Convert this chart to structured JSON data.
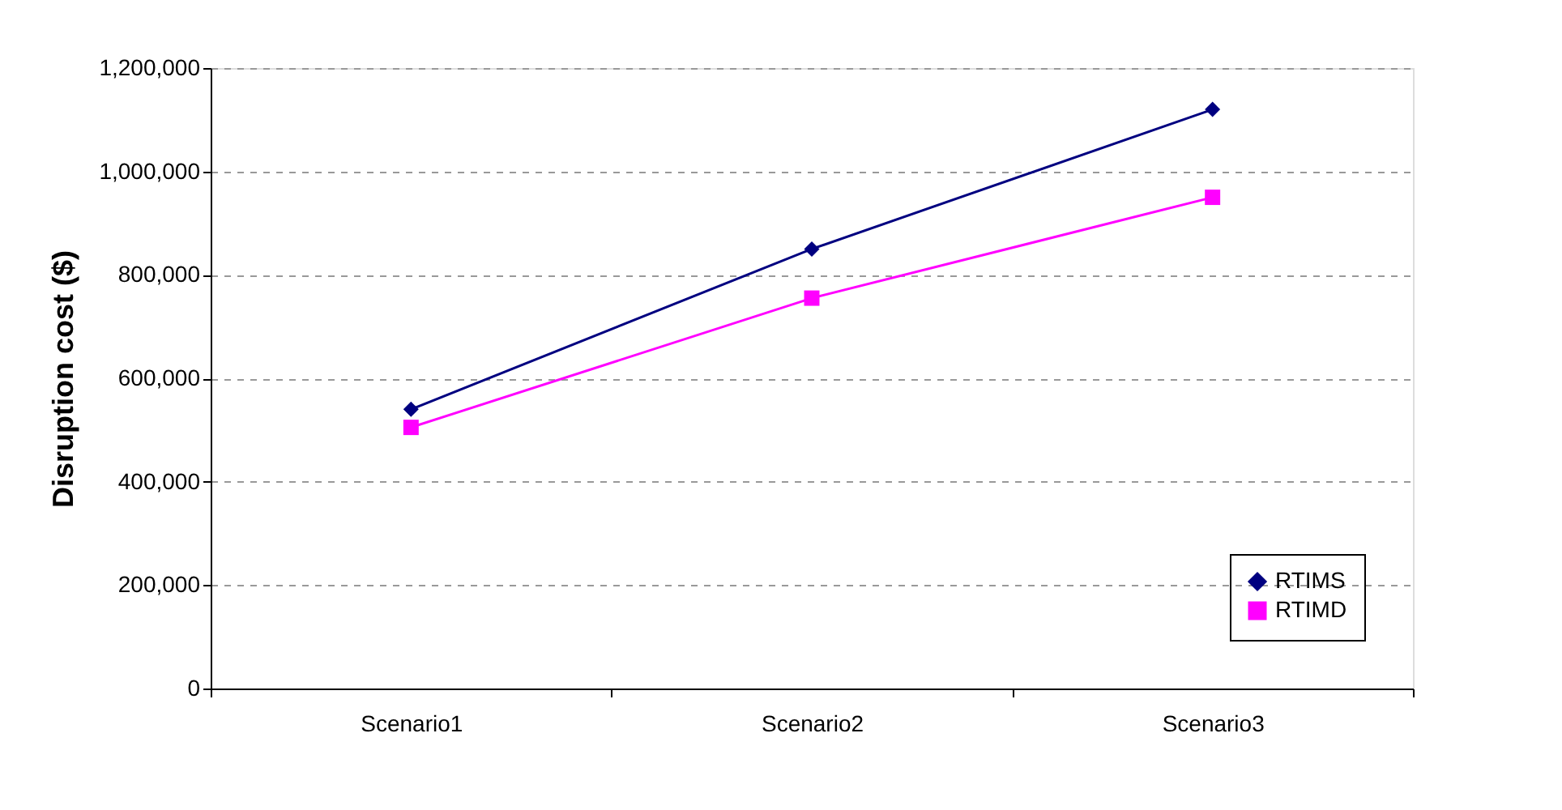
{
  "chart_data": {
    "type": "line",
    "ylabel": "Disruption cost ($)",
    "categories": [
      "Scenario1",
      "Scenario2",
      "Scenario3"
    ],
    "series": [
      {
        "name": "RTIMS",
        "color": "#000080",
        "marker": "diamond",
        "values": [
          540000,
          850000,
          1120000
        ]
      },
      {
        "name": "RTIMD",
        "color": "#ff00ff",
        "marker": "square",
        "values": [
          505000,
          755000,
          950000
        ]
      }
    ],
    "ylim": [
      0,
      1200000
    ],
    "yticks": [
      0,
      {
        "value": 200000,
        "label": "200,000"
      },
      {
        "value": 400000,
        "label": "400,000"
      },
      {
        "value": 600000,
        "label": "600,000"
      },
      {
        "value": 800000,
        "label": "800,000"
      },
      {
        "value": 1000000,
        "label": "1,000,000"
      },
      {
        "value": 1200000,
        "label": "1,200,000"
      }
    ],
    "grid": "y",
    "legend": "bottom right"
  }
}
